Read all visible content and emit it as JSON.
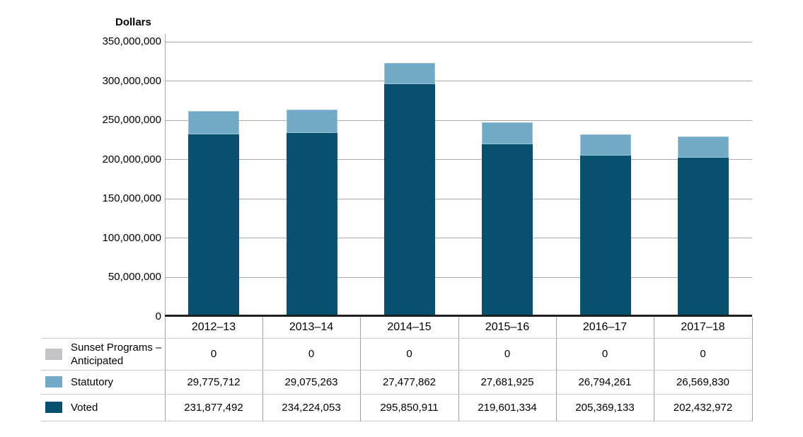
{
  "chart_data": {
    "type": "bar",
    "stacked": true,
    "title": "Dollars",
    "ylabel": "Dollars",
    "xlabel": "",
    "categories": [
      "2012–13",
      "2013–14",
      "2014–15",
      "2015–16",
      "2016–17",
      "2017–18"
    ],
    "series": [
      {
        "name": "Sunset Programs – Anticipated",
        "color": "#c3c3c7",
        "values": [
          0,
          0,
          0,
          0,
          0,
          0
        ]
      },
      {
        "name": "Statutory",
        "color": "#72a9c6",
        "values": [
          29775712,
          29075263,
          27477862,
          27681925,
          26794261,
          26569830
        ]
      },
      {
        "name": "Voted",
        "color": "#07506e",
        "values": [
          231877492,
          234224053,
          295850911,
          219601334,
          205369133,
          202432972
        ]
      }
    ],
    "stack_order_bottom_to_top": [
      "Voted",
      "Statutory",
      "Sunset Programs – Anticipated"
    ],
    "ylim": [
      0,
      350000000
    ],
    "yticks": [
      {
        "value": 0,
        "label": "0"
      },
      {
        "value": 50000000,
        "label": "50,000,000"
      },
      {
        "value": 100000000,
        "label": "100,000,000"
      },
      {
        "value": 150000000,
        "label": "150,000,000"
      },
      {
        "value": 200000000,
        "label": "200,000,000"
      },
      {
        "value": 250000000,
        "label": "250,000,000"
      },
      {
        "value": 300000000,
        "label": "300,000,000"
      },
      {
        "value": 350000000,
        "label": "350,000,000"
      }
    ],
    "grid": "horizontal",
    "legend_position": "table-left-below-chart"
  },
  "table": {
    "columns": [
      "2012–13",
      "2013–14",
      "2014–15",
      "2015–16",
      "2016–17",
      "2017–18"
    ],
    "rows": [
      {
        "label": "Sunset Programs – Anticipated",
        "swatch_color": "#c3c3c7",
        "values": [
          "0",
          "0",
          "0",
          "0",
          "0",
          "0"
        ]
      },
      {
        "label": "Statutory",
        "swatch_color": "#72a9c6",
        "values": [
          "29,775,712",
          "29,075,263",
          "27,477,862",
          "27,681,925",
          "26,794,261",
          "26,569,830"
        ]
      },
      {
        "label": "Voted",
        "swatch_color": "#07506e",
        "values": [
          "231,877,492",
          "234,224,053",
          "295,850,911",
          "219,601,334",
          "205,369,133",
          "202,432,972"
        ]
      }
    ]
  },
  "colors": {
    "voted": "#07506e",
    "statutory": "#72a9c6",
    "sunset": "#c3c3c7",
    "gridline": "#aaaaaa",
    "axis_baseline": "#1f1f1f",
    "table_border_vertical": "#a0a0a0",
    "table_border_horizontal": "#cccccc",
    "text": "#000000"
  }
}
